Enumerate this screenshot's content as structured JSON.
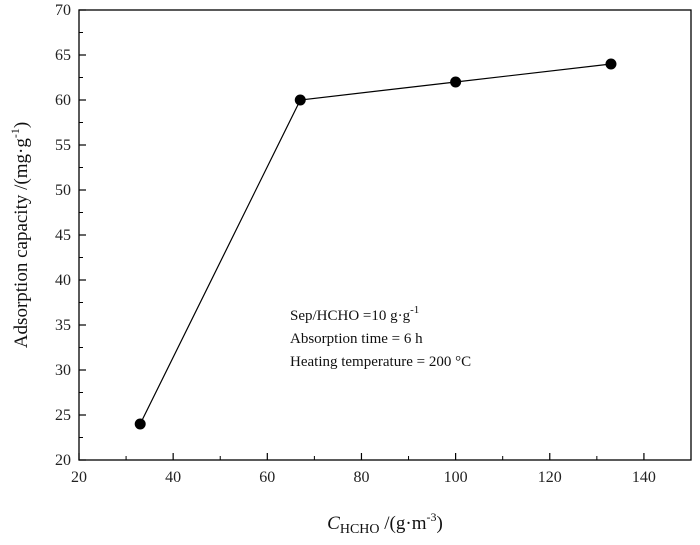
{
  "chart_data": {
    "type": "line",
    "title": "",
    "x": [
      33,
      67,
      100,
      133
    ],
    "series": [
      {
        "name": "Adsorption capacity",
        "values": [
          24,
          60,
          62,
          64
        ]
      }
    ],
    "xlim": [
      20,
      150
    ],
    "ylim": [
      20,
      70
    ],
    "xticks": [
      20,
      40,
      60,
      80,
      100,
      120,
      140
    ],
    "yticks": [
      20,
      25,
      30,
      35,
      40,
      45,
      50,
      55,
      60,
      65,
      70
    ],
    "xlabel": {
      "var": "C",
      "sub": "HCHO",
      "unit_pre": " /(g·m",
      "sup": "-3",
      "unit_post": ")"
    },
    "ylabel": {
      "main": "Adsorption capacity /(mg·g",
      "sup": "-1",
      "post": ")"
    },
    "annotations": [
      {
        "text": "Sep/HCHO =10 g·g",
        "sup": "-1"
      },
      {
        "text": "Absorption time = 6 h"
      },
      {
        "text": "Heating temperature = 200 °C"
      }
    ],
    "grid": false,
    "legend": "none",
    "colors": {
      "line": "#000000",
      "marker": "#000000",
      "axis": "#000000"
    }
  }
}
